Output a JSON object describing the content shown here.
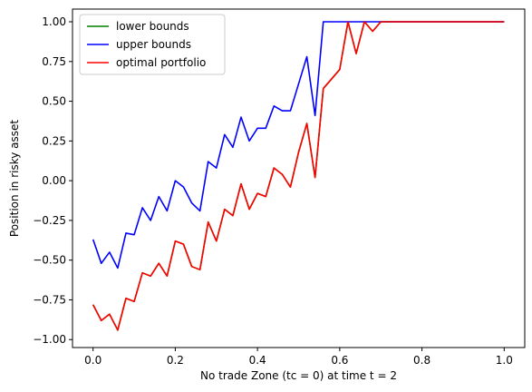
{
  "chart_data": {
    "type": "line",
    "title": "",
    "xlabel": "No trade Zone (tc = 0) at time t = 2",
    "ylabel": "Position in risky asset",
    "xlim": [
      -0.05,
      1.05
    ],
    "ylim": [
      -1.05,
      1.08
    ],
    "xticks": [
      0.0,
      0.2,
      0.4,
      0.6,
      0.8,
      1.0
    ],
    "xtick_labels": [
      "0.0",
      "0.2",
      "0.4",
      "0.6",
      "0.8",
      "1.0"
    ],
    "yticks": [
      -1.0,
      -0.75,
      -0.5,
      -0.25,
      0.0,
      0.25,
      0.5,
      0.75,
      1.0
    ],
    "ytick_labels": [
      "−1.00",
      "−0.75",
      "−0.50",
      "−0.25",
      "0.00",
      "0.25",
      "0.50",
      "0.75",
      "1.00"
    ],
    "grid": false,
    "legend_position": "upper-left",
    "series": [
      {
        "name": "lower bounds",
        "color": "#008000",
        "x": [
          0.0,
          0.02,
          0.04,
          0.06,
          0.08,
          0.1,
          0.12,
          0.14,
          0.16,
          0.18,
          0.2,
          0.22,
          0.24,
          0.26,
          0.28,
          0.3,
          0.32,
          0.34,
          0.36,
          0.38,
          0.4,
          0.42,
          0.44,
          0.46,
          0.48,
          0.5,
          0.52,
          0.54,
          0.56,
          0.58,
          0.6,
          0.62,
          0.64,
          0.66,
          0.68,
          0.7,
          0.72,
          0.74,
          0.76,
          0.78,
          0.8,
          0.82,
          0.84,
          0.86,
          0.88,
          0.9,
          0.92,
          0.94,
          0.96,
          0.98,
          1.0
        ],
        "values": [
          -0.78,
          -0.88,
          -0.84,
          -0.94,
          -0.74,
          -0.76,
          -0.58,
          -0.6,
          -0.52,
          -0.6,
          -0.38,
          -0.4,
          -0.54,
          -0.56,
          -0.26,
          -0.38,
          -0.18,
          -0.22,
          -0.02,
          -0.18,
          -0.08,
          -0.1,
          0.08,
          0.04,
          -0.04,
          0.18,
          0.36,
          0.02,
          0.58,
          0.64,
          0.7,
          1.0,
          0.8,
          1.0,
          0.94,
          1.0,
          1.0,
          1.0,
          1.0,
          1.0,
          1.0,
          1.0,
          1.0,
          1.0,
          1.0,
          1.0,
          1.0,
          1.0,
          1.0,
          1.0,
          1.0
        ]
      },
      {
        "name": "upper bounds",
        "color": "#0000ff",
        "x": [
          0.0,
          0.02,
          0.04,
          0.06,
          0.08,
          0.1,
          0.12,
          0.14,
          0.16,
          0.18,
          0.2,
          0.22,
          0.24,
          0.26,
          0.28,
          0.3,
          0.32,
          0.34,
          0.36,
          0.38,
          0.4,
          0.42,
          0.44,
          0.46,
          0.48,
          0.5,
          0.52,
          0.54,
          0.56,
          0.58,
          0.6,
          0.62,
          0.64,
          0.66,
          0.68,
          0.7,
          0.72,
          0.74,
          0.76,
          0.78,
          0.8,
          0.82,
          0.84,
          0.86,
          0.88,
          0.9,
          0.92,
          0.94,
          0.96,
          0.98,
          1.0
        ],
        "values": [
          -0.37,
          -0.52,
          -0.45,
          -0.55,
          -0.33,
          -0.34,
          -0.17,
          -0.25,
          -0.1,
          -0.19,
          0.0,
          -0.04,
          -0.14,
          -0.19,
          0.12,
          0.08,
          0.29,
          0.21,
          0.4,
          0.25,
          0.33,
          0.33,
          0.47,
          0.44,
          0.44,
          0.61,
          0.78,
          0.41,
          1.0,
          1.0,
          1.0,
          1.0,
          1.0,
          1.0,
          1.0,
          1.0,
          1.0,
          1.0,
          1.0,
          1.0,
          1.0,
          1.0,
          1.0,
          1.0,
          1.0,
          1.0,
          1.0,
          1.0,
          1.0,
          1.0,
          1.0
        ]
      },
      {
        "name": "optimal portfolio",
        "color": "#ff0000",
        "x": [
          0.0,
          0.02,
          0.04,
          0.06,
          0.08,
          0.1,
          0.12,
          0.14,
          0.16,
          0.18,
          0.2,
          0.22,
          0.24,
          0.26,
          0.28,
          0.3,
          0.32,
          0.34,
          0.36,
          0.38,
          0.4,
          0.42,
          0.44,
          0.46,
          0.48,
          0.5,
          0.52,
          0.54,
          0.56,
          0.58,
          0.6,
          0.62,
          0.64,
          0.66,
          0.68,
          0.7,
          0.72,
          0.74,
          0.76,
          0.78,
          0.8,
          0.82,
          0.84,
          0.86,
          0.88,
          0.9,
          0.92,
          0.94,
          0.96,
          0.98,
          1.0
        ],
        "values": [
          -0.78,
          -0.88,
          -0.84,
          -0.94,
          -0.74,
          -0.76,
          -0.58,
          -0.6,
          -0.52,
          -0.6,
          -0.38,
          -0.4,
          -0.54,
          -0.56,
          -0.26,
          -0.38,
          -0.18,
          -0.22,
          -0.02,
          -0.18,
          -0.08,
          -0.1,
          0.08,
          0.04,
          -0.04,
          0.18,
          0.36,
          0.02,
          0.58,
          0.64,
          0.7,
          1.0,
          0.8,
          1.0,
          0.94,
          1.0,
          1.0,
          1.0,
          1.0,
          1.0,
          1.0,
          1.0,
          1.0,
          1.0,
          1.0,
          1.0,
          1.0,
          1.0,
          1.0,
          1.0,
          1.0
        ]
      }
    ]
  }
}
